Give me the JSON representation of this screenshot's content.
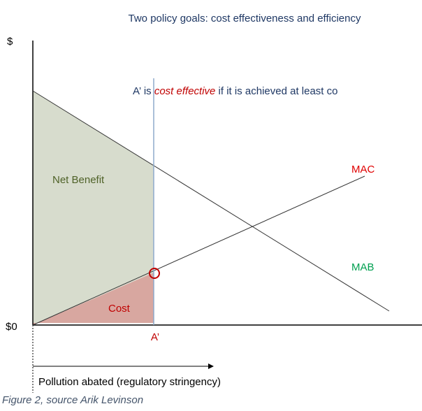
{
  "title": "Two policy goals: cost effectiveness and efficiency",
  "y_axis_label": "$",
  "origin_label": "$0",
  "annotation": {
    "prefix": "A’ is ",
    "emphasis": "cost effective",
    "suffix": " if it is achieved at least co"
  },
  "curves": {
    "mac": "MAC",
    "mab": "MAB"
  },
  "regions": {
    "net_benefit": "Net Benefit",
    "cost": "Cost"
  },
  "point_label": "A’",
  "x_axis_label": "Pollution abated (regulatory stringency)",
  "caption": "Figure 2, source Arik Levinson"
}
